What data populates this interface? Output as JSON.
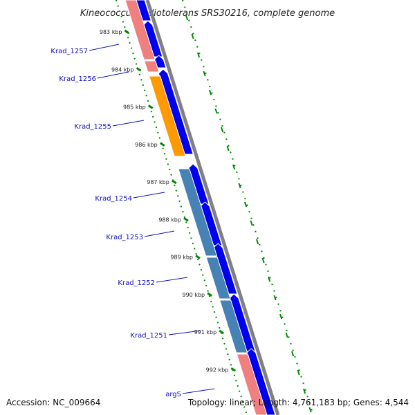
{
  "title": "Kineococcus radiotolerans SRS30216, complete genome",
  "footer": {
    "accession": "Accession: NC_009664",
    "summary": "Topology: linear; Length: 4,761,183 bp; Genes: 4,544"
  },
  "colors": {
    "axis": "#808080",
    "ticks": "#008800",
    "forward_cds": "#0000ee",
    "label": "#1010c0",
    "red_gene": "#f08080",
    "orange_gene": "#ff9900",
    "steel_gene": "#4682b4"
  },
  "ticks": [
    "983 kbp",
    "984 kbp",
    "985 kbp",
    "986 kbp",
    "987 kbp",
    "988 kbp",
    "989 kbp",
    "990 kbp",
    "991 kbp",
    "992 kbp"
  ],
  "gene_labels": [
    "Krad_1257",
    "Krad_1256",
    "Krad_1255",
    "Krad_1254",
    "Krad_1253",
    "Krad_1252",
    "Krad_1251",
    "argS"
  ]
}
